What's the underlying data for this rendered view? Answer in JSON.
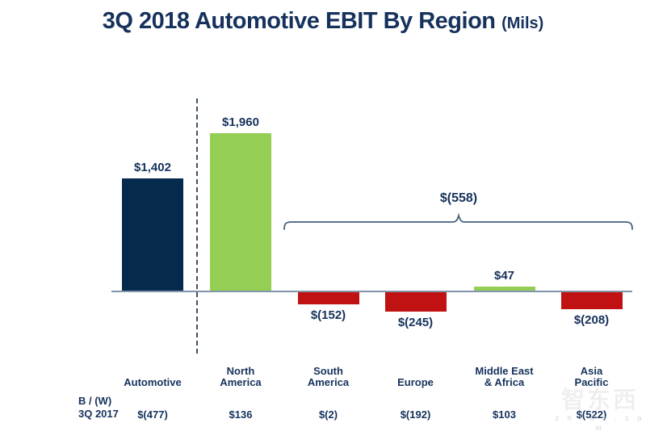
{
  "page": {
    "background": "#ffffff"
  },
  "title": {
    "text": "3Q 2018 Automotive EBIT By Region",
    "suffix": "(Mils)"
  },
  "colors": {
    "navy": "#052a4e",
    "green": "#94ce55",
    "red": "#c01212",
    "text_navy": "#16325c",
    "axis": "#8095a9",
    "brace": "#41607e",
    "dashed_line": "#3f5266"
  },
  "chart_data": {
    "type": "bar",
    "title": "3Q 2018 Automotive EBIT By Region (Mils)",
    "unit": "USD millions",
    "categories": [
      "Automotive",
      "North America",
      "South America",
      "Europe",
      "Middle East & Africa",
      "Asia Pacific"
    ],
    "category_lines": [
      [
        "Automotive"
      ],
      [
        "North",
        "America"
      ],
      [
        "South",
        "America"
      ],
      [
        "Europe"
      ],
      [
        "Middle East",
        "& Africa"
      ],
      [
        "Asia",
        "Pacific"
      ]
    ],
    "values": [
      1402,
      1960,
      -152,
      -245,
      47,
      -208
    ],
    "value_labels": [
      "$1,402",
      "$1,960",
      "$(152)",
      "$(245)",
      "$47",
      "$(208)"
    ],
    "bar_colors": [
      "navy",
      "green",
      "red",
      "red",
      "green",
      "red"
    ],
    "separator_after_category": "Automotive",
    "brace_annotation": {
      "label": "$(558)",
      "from_category": "South America",
      "to_category": "Asia Pacific"
    },
    "comparison_row": {
      "label_lines": [
        "B / (W)",
        "3Q 2017"
      ],
      "values": [
        "$(477)",
        "$136",
        "$(2)",
        "$(192)",
        "$103",
        "$(522)"
      ]
    },
    "axis_baseline_value": 0,
    "grid": false,
    "legend": false
  },
  "watermark": {
    "logo": "智东西",
    "domain": "z h i d x . c o m"
  }
}
